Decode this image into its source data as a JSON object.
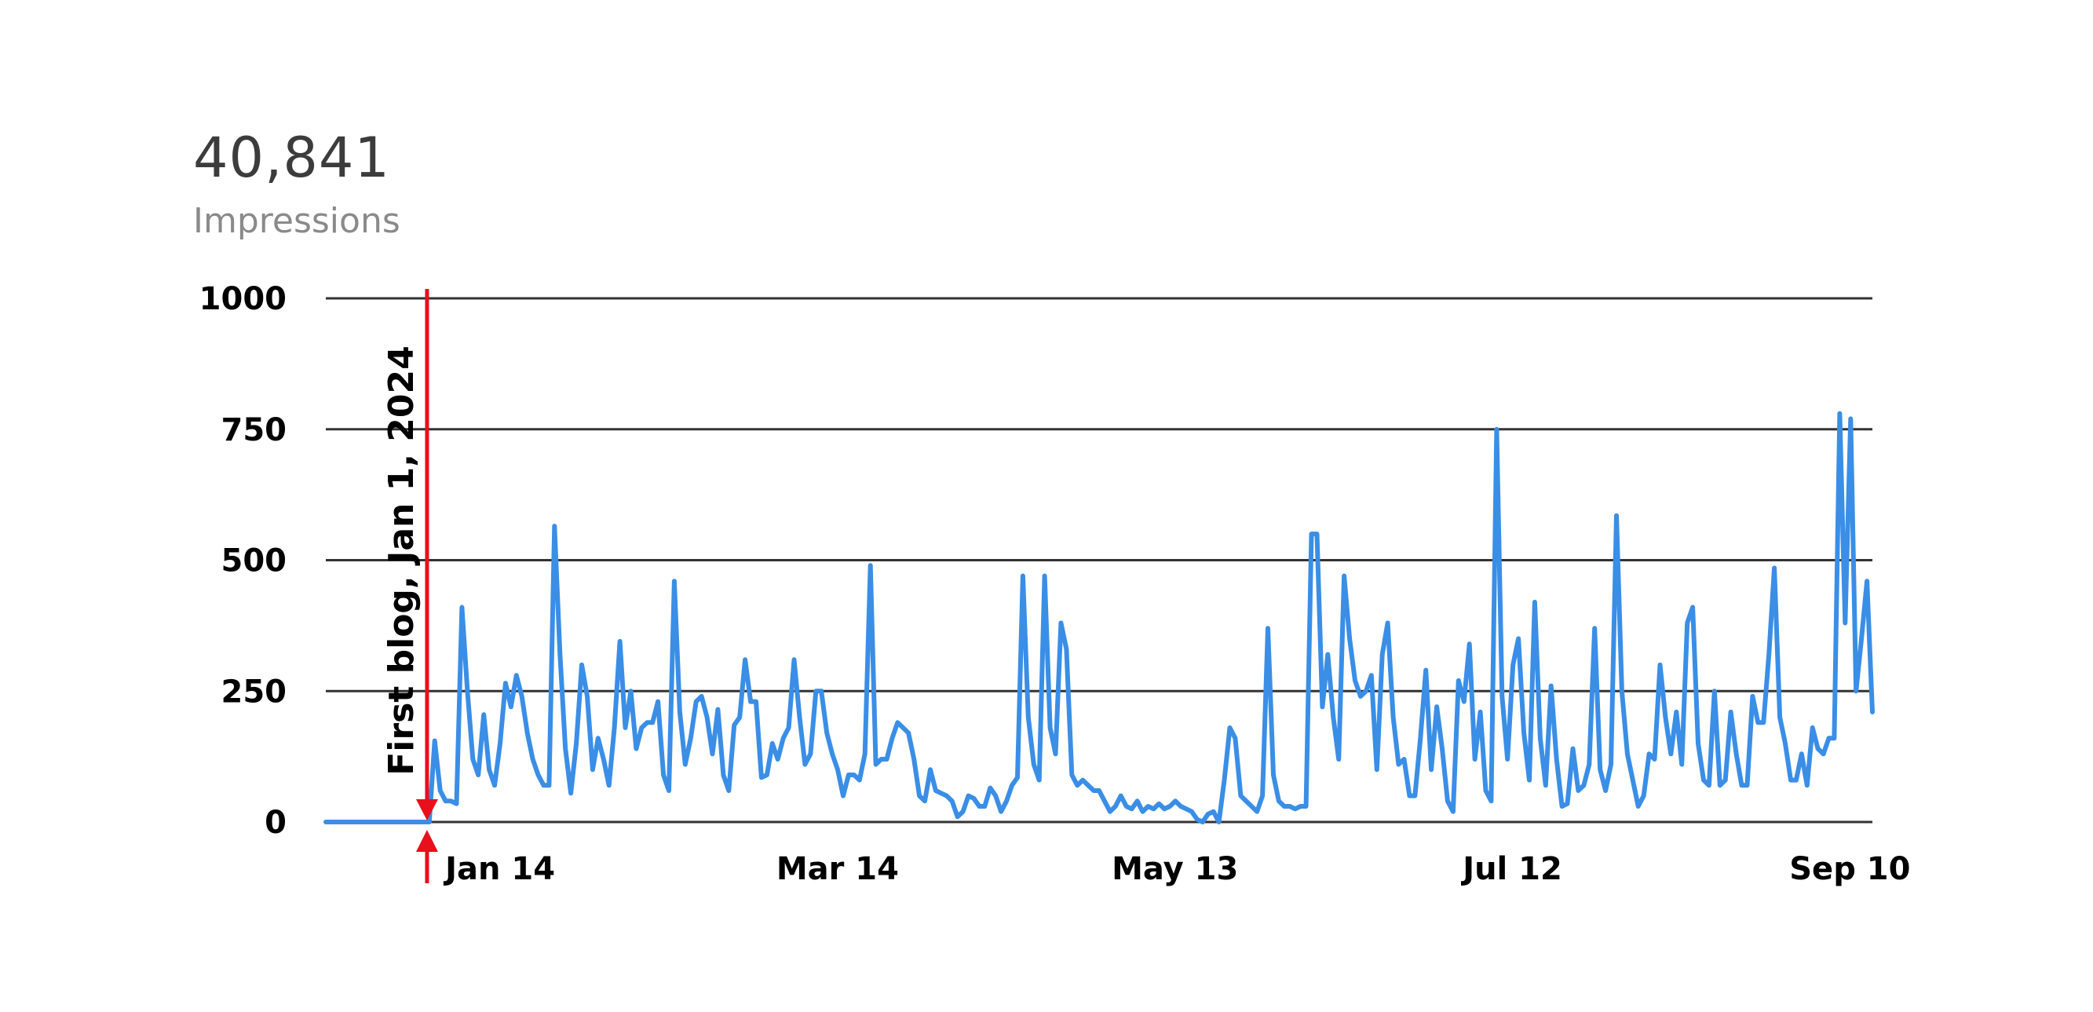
{
  "kpi": {
    "value": "40,841",
    "label": "Impressions"
  },
  "colors": {
    "line": "#3a8ee6",
    "annotation": "#e8101b",
    "grid": "#333333",
    "text": "#000000"
  },
  "chart_data": {
    "type": "line",
    "title": "",
    "xlabel": "",
    "ylabel": "",
    "ylim": [
      0,
      1000
    ],
    "yticks": [
      0,
      250,
      500,
      750,
      1000
    ],
    "ytick_labels": [
      "0",
      "250",
      "500",
      "750",
      "1000"
    ],
    "grid": true,
    "legend": "none",
    "x_tick_labels": [
      "Jan 14",
      "Mar 14",
      "May 13",
      "Jul 12",
      "Sep 10"
    ],
    "x_tick_days": [
      13,
      73,
      133,
      193,
      253
    ],
    "x_range_days": [
      -18,
      257
    ],
    "annotation": {
      "text": "First blog, Jan 1, 2024",
      "day": 0
    },
    "series": [
      {
        "values": [
          0,
          0,
          0,
          0,
          0,
          0,
          0,
          0,
          0,
          0,
          0,
          0,
          0,
          0,
          0,
          0,
          0,
          0,
          0,
          0,
          155,
          60,
          40,
          40,
          35,
          410,
          250,
          120,
          90,
          205,
          100,
          70,
          150,
          265,
          220,
          280,
          240,
          170,
          120,
          90,
          70,
          70,
          565,
          320,
          140,
          55,
          150,
          300,
          240,
          100,
          160,
          120,
          70,
          180,
          345,
          180,
          250,
          140,
          180,
          190,
          190,
          230,
          90,
          60,
          460,
          210,
          110,
          160,
          230,
          240,
          200,
          130,
          215,
          90,
          60,
          185,
          200,
          310,
          230,
          230,
          85,
          90,
          150,
          120,
          160,
          180,
          310,
          200,
          110,
          130,
          250,
          250,
          170,
          130,
          100,
          50,
          90,
          90,
          80,
          130,
          490,
          110,
          120,
          120,
          160,
          190,
          180,
          170,
          120,
          50,
          40,
          100,
          60,
          55,
          50,
          40,
          10,
          20,
          50,
          45,
          30,
          30,
          65,
          50,
          20,
          40,
          70,
          85,
          470,
          200,
          110,
          80,
          470,
          180,
          130,
          380,
          330,
          90,
          70,
          80,
          70,
          60,
          60,
          40,
          20,
          30,
          50,
          30,
          25,
          40,
          20,
          30,
          25,
          35,
          25,
          30,
          40,
          30,
          25,
          20,
          5,
          0,
          15,
          20,
          0,
          80,
          180,
          160,
          50,
          40,
          30,
          20,
          50,
          370,
          90,
          40,
          30,
          30,
          25,
          30,
          30,
          550,
          550,
          220,
          320,
          200,
          120,
          470,
          350,
          270,
          240,
          250,
          280,
          100,
          320,
          380,
          200,
          110,
          120,
          50,
          50,
          160,
          290,
          100,
          220,
          140,
          40,
          20,
          270,
          230,
          340,
          120,
          210,
          60,
          40,
          750,
          240,
          120,
          300,
          350,
          170,
          80,
          420,
          160,
          70,
          260,
          120,
          30,
          35,
          140,
          60,
          70,
          110,
          370,
          100,
          60,
          110,
          585,
          250,
          130,
          80,
          30,
          50,
          130,
          120,
          300,
          200,
          130,
          210,
          110,
          380,
          410,
          150,
          80,
          70,
          250,
          70,
          80,
          210,
          130,
          70,
          70,
          240,
          190,
          190,
          320,
          485,
          200,
          150,
          80,
          80,
          130,
          70,
          180,
          140,
          130,
          160,
          160,
          780,
          380,
          770,
          250,
          350,
          460,
          210
        ]
      }
    ]
  }
}
